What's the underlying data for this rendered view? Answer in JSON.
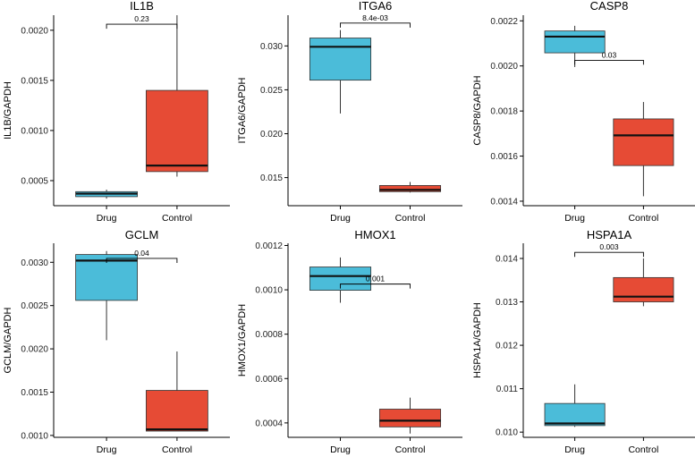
{
  "chart_data": [
    {
      "type": "box",
      "title": "IL1B",
      "ylabel": "IL1B/GAPDH",
      "categories": [
        "Drug",
        "Control"
      ],
      "ylim": [
        0.00025,
        0.00215
      ],
      "yticks": [
        0.0005,
        0.001,
        0.0015,
        0.002
      ],
      "ytick_labels": [
        "0.0005",
        "0.0010",
        "0.0015",
        "0.0020"
      ],
      "boxes": [
        {
          "group": "Drug",
          "min": 0.00032,
          "q1": 0.00034,
          "median": 0.00037,
          "q3": 0.00039,
          "max": 0.00041
        },
        {
          "group": "Control",
          "min": 0.00054,
          "q1": 0.00059,
          "median": 0.00065,
          "q3": 0.0014,
          "max": 0.00215
        }
      ],
      "pvalue": "0.23",
      "bracket_y": 0.00206
    },
    {
      "type": "box",
      "title": "ITGA6",
      "ylabel": "ITGA6/GAPDH",
      "categories": [
        "Drug",
        "Control"
      ],
      "ylim": [
        0.0118,
        0.0335
      ],
      "yticks": [
        0.015,
        0.02,
        0.025,
        0.03
      ],
      "ytick_labels": [
        "0.015",
        "0.020",
        "0.025",
        "0.030"
      ],
      "boxes": [
        {
          "group": "Drug",
          "min": 0.0223,
          "q1": 0.0261,
          "median": 0.0299,
          "q3": 0.0309,
          "max": 0.0318
        },
        {
          "group": "Control",
          "min": 0.0133,
          "q1": 0.0134,
          "median": 0.0136,
          "q3": 0.0141,
          "max": 0.0145
        }
      ],
      "pvalue": "8.4e-03",
      "bracket_y": 0.0326
    },
    {
      "type": "box",
      "title": "CASP8",
      "ylabel": "CASP8/GAPDH",
      "categories": [
        "Drug",
        "Control"
      ],
      "ylim": [
        0.00138,
        0.002225
      ],
      "yticks": [
        0.0014,
        0.0016,
        0.0018,
        0.002,
        0.0022
      ],
      "ytick_labels": [
        "0.0014",
        "0.0016",
        "0.0018",
        "0.0020",
        "0.0022"
      ],
      "boxes": [
        {
          "group": "Drug",
          "min": 0.001995,
          "q1": 0.002058,
          "median": 0.00213,
          "q3": 0.002155,
          "max": 0.002178
        },
        {
          "group": "Control",
          "min": 0.001422,
          "q1": 0.001558,
          "median": 0.001692,
          "q3": 0.001765,
          "max": 0.00184
        }
      ],
      "pvalue": "0.03",
      "bracket_y": 0.002025
    },
    {
      "type": "box",
      "title": "GCLM",
      "ylabel": "GCLM/GAPDH",
      "categories": [
        "Drug",
        "Control"
      ],
      "ylim": [
        0.000978,
        0.00322
      ],
      "yticks": [
        0.001,
        0.0015,
        0.002,
        0.0025,
        0.003
      ],
      "ytick_labels": [
        "0.0010",
        "0.0015",
        "0.0020",
        "0.0025",
        "0.0030"
      ],
      "boxes": [
        {
          "group": "Drug",
          "min": 0.0021,
          "q1": 0.00256,
          "median": 0.00302,
          "q3": 0.00309,
          "max": 0.00313
        },
        {
          "group": "Control",
          "min": 0.00105,
          "q1": 0.00105,
          "median": 0.00107,
          "q3": 0.00152,
          "max": 0.00197
        }
      ],
      "pvalue": "0.04",
      "bracket_y": 0.003045
    },
    {
      "type": "box",
      "title": "HMOX1",
      "ylabel": "HMOX1/GAPDH",
      "categories": [
        "Drug",
        "Control"
      ],
      "ylim": [
        0.000335,
        0.00121
      ],
      "yticks": [
        0.0004,
        0.0006,
        0.0008,
        0.001,
        0.0012
      ],
      "ytick_labels": [
        "0.0004",
        "0.0006",
        "0.0008",
        "0.0010",
        "0.0012"
      ],
      "boxes": [
        {
          "group": "Drug",
          "min": 0.000942,
          "q1": 0.000998,
          "median": 0.001062,
          "q3": 0.001103,
          "max": 0.001146
        },
        {
          "group": "Control",
          "min": 0.000352,
          "q1": 0.000382,
          "median": 0.00041,
          "q3": 0.000462,
          "max": 0.000514
        }
      ],
      "pvalue": "0.001",
      "bracket_y": 0.001026
    },
    {
      "type": "box",
      "title": "HSPA1A",
      "ylabel": "HSPA1A/GAPDH",
      "categories": [
        "Drug",
        "Control"
      ],
      "ylim": [
        0.00988,
        0.01435
      ],
      "yticks": [
        0.01,
        0.011,
        0.012,
        0.013,
        0.014
      ],
      "ytick_labels": [
        "0.010",
        "0.011",
        "0.012",
        "0.013",
        "0.014"
      ],
      "boxes": [
        {
          "group": "Drug",
          "min": 0.01012,
          "q1": 0.01015,
          "median": 0.0102,
          "q3": 0.01066,
          "max": 0.0111
        },
        {
          "group": "Control",
          "min": 0.0129,
          "q1": 0.013,
          "median": 0.01312,
          "q3": 0.01356,
          "max": 0.014
        }
      ],
      "pvalue": "0.003",
      "bracket_y": 0.01414
    }
  ],
  "colors": {
    "Drug": "#4bbcd9",
    "Control": "#e64b35",
    "axis": "#000000",
    "median": "#111111"
  }
}
